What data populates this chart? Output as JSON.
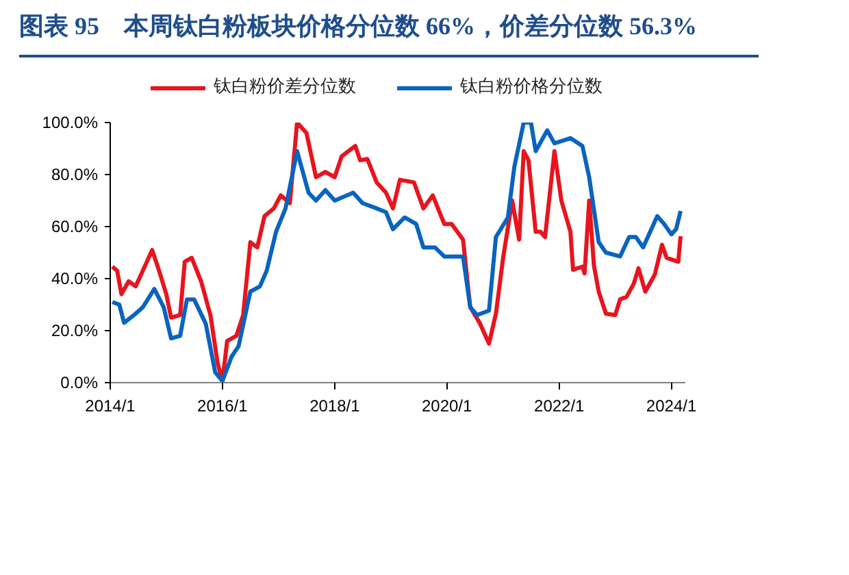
{
  "chart_data": {
    "type": "line",
    "title": "图表 95　本周钛白粉板块价格分位数 66%，价差分位数 56.3%",
    "xlim": [
      "2014-01-01",
      "2024-04-01"
    ],
    "xticks": [
      {
        "value": "2014-01",
        "label": "2014/1"
      },
      {
        "value": "2016-01",
        "label": "2016/1"
      },
      {
        "value": "2018-01",
        "label": "2018/1"
      },
      {
        "value": "2020-01",
        "label": "2020/1"
      },
      {
        "value": "2022-01",
        "label": "2022/1"
      },
      {
        "value": "2024-01",
        "label": "2024/1"
      }
    ],
    "ylim": [
      0,
      100
    ],
    "yticks": [
      {
        "value": 0,
        "label": "0.0%"
      },
      {
        "value": 20,
        "label": "20.0%"
      },
      {
        "value": 40,
        "label": "40.0%"
      },
      {
        "value": 60,
        "label": "60.0%"
      },
      {
        "value": 80,
        "label": "80.0%"
      },
      {
        "value": 100,
        "label": "100.0%"
      }
    ],
    "grid": false,
    "legend": "top",
    "line_style": "solid",
    "series": [
      {
        "name": "钛白粉价差分位数",
        "color": "#e8141e",
        "x": [
          "2014-01-15",
          "2014-02-15",
          "2014-03-15",
          "2014-05-01",
          "2014-06-15",
          "2014-08-01",
          "2014-10-01",
          "2014-11-15",
          "2015-01-01",
          "2015-02-01",
          "2015-04-01",
          "2015-05-01",
          "2015-06-15",
          "2015-08-15",
          "2015-10-15",
          "2015-12-01",
          "2016-01-01",
          "2016-02-01",
          "2016-04-01",
          "2016-05-15",
          "2016-07-01",
          "2016-08-15",
          "2016-10-01",
          "2016-12-01",
          "2017-01-15",
          "2017-03-15",
          "2017-05-01",
          "2017-07-01",
          "2017-09-01",
          "2017-11-01",
          "2018-01-01",
          "2018-02-15",
          "2018-05-15",
          "2018-06-15",
          "2018-08-01",
          "2018-10-01",
          "2018-12-01",
          "2019-01-15",
          "2019-03-01",
          "2019-06-01",
          "2019-08-01",
          "2019-10-01",
          "2019-12-15",
          "2020-02-01",
          "2020-04-15",
          "2020-06-01",
          "2020-08-01",
          "2020-10-01",
          "2020-11-15",
          "2021-01-01",
          "2021-03-01",
          "2021-04-15",
          "2021-05-15",
          "2021-06-15",
          "2021-08-01",
          "2021-09-01",
          "2021-10-01",
          "2021-12-01",
          "2022-01-15",
          "2022-03-15",
          "2022-04-01",
          "2022-06-01",
          "2022-06-15",
          "2022-07-15",
          "2022-08-15",
          "2022-09-15",
          "2022-11-01",
          "2023-01-01",
          "2023-02-01",
          "2023-03-15",
          "2023-05-01",
          "2023-06-01",
          "2023-07-15",
          "2023-09-15",
          "2023-11-01",
          "2023-12-01",
          "2024-02-15",
          "2024-03-01"
        ],
        "values": [
          44.6,
          43,
          34,
          39,
          37,
          43,
          51,
          43,
          34,
          25,
          26,
          46.5,
          48,
          39,
          26,
          7.5,
          0.6,
          16,
          18,
          26,
          54,
          52,
          64,
          67,
          72,
          69,
          100,
          96,
          79,
          81,
          79,
          87,
          91,
          85.5,
          86,
          77,
          73,
          67,
          78,
          77,
          67,
          72,
          61,
          61,
          55,
          29,
          23,
          15,
          26.5,
          48,
          70,
          55,
          89,
          85.5,
          58,
          58,
          56,
          89,
          70,
          58,
          43.4,
          44.6,
          42,
          70,
          45,
          35,
          26.5,
          26,
          32,
          33,
          38,
          44,
          35,
          41.5,
          53,
          48,
          46.5,
          56.3
        ]
      },
      {
        "name": "钛白粉价格分位数",
        "color": "#0a64be",
        "x": [
          "2014-01-15",
          "2014-03-01",
          "2014-04-01",
          "2014-06-15",
          "2014-08-01",
          "2014-10-15",
          "2014-12-15",
          "2015-02-01",
          "2015-04-01",
          "2015-05-15",
          "2015-07-01",
          "2015-09-15",
          "2015-11-15",
          "2016-01-01",
          "2016-03-01",
          "2016-04-15",
          "2016-07-01",
          "2016-09-01",
          "2016-10-15",
          "2016-12-15",
          "2017-02-15",
          "2017-05-01",
          "2017-07-15",
          "2017-09-01",
          "2017-11-01",
          "2018-01-01",
          "2018-05-01",
          "2018-07-01",
          "2018-10-01",
          "2018-12-01",
          "2019-01-15",
          "2019-04-01",
          "2019-06-15",
          "2019-08-01",
          "2019-10-15",
          "2019-12-15",
          "2020-04-15",
          "2020-06-01",
          "2020-07-15",
          "2020-10-01",
          "2020-11-15",
          "2021-02-01",
          "2021-03-15",
          "2021-05-15",
          "2021-07-01",
          "2021-08-01",
          "2021-10-15",
          "2021-12-01",
          "2022-03-15",
          "2022-06-01",
          "2022-07-15",
          "2022-09-15",
          "2022-11-01",
          "2023-02-01",
          "2023-04-01",
          "2023-05-15",
          "2023-07-01",
          "2023-10-01",
          "2023-11-15",
          "2024-01-01",
          "2024-02-01",
          "2024-03-01"
        ],
        "values": [
          31,
          30,
          23,
          26.5,
          29,
          36,
          29,
          17,
          18,
          32,
          32,
          22.6,
          4,
          0.6,
          10,
          14,
          35,
          37,
          43,
          58,
          67,
          89,
          73,
          70,
          74,
          70,
          73,
          69,
          67,
          65.5,
          59,
          63.5,
          61,
          52,
          52,
          48.5,
          48.5,
          29,
          26,
          27.7,
          56,
          63.5,
          83,
          100,
          100,
          89,
          97,
          92,
          94,
          91,
          79,
          54,
          50,
          48.5,
          56,
          56,
          52,
          64,
          61,
          57,
          59,
          66
        ]
      }
    ]
  }
}
